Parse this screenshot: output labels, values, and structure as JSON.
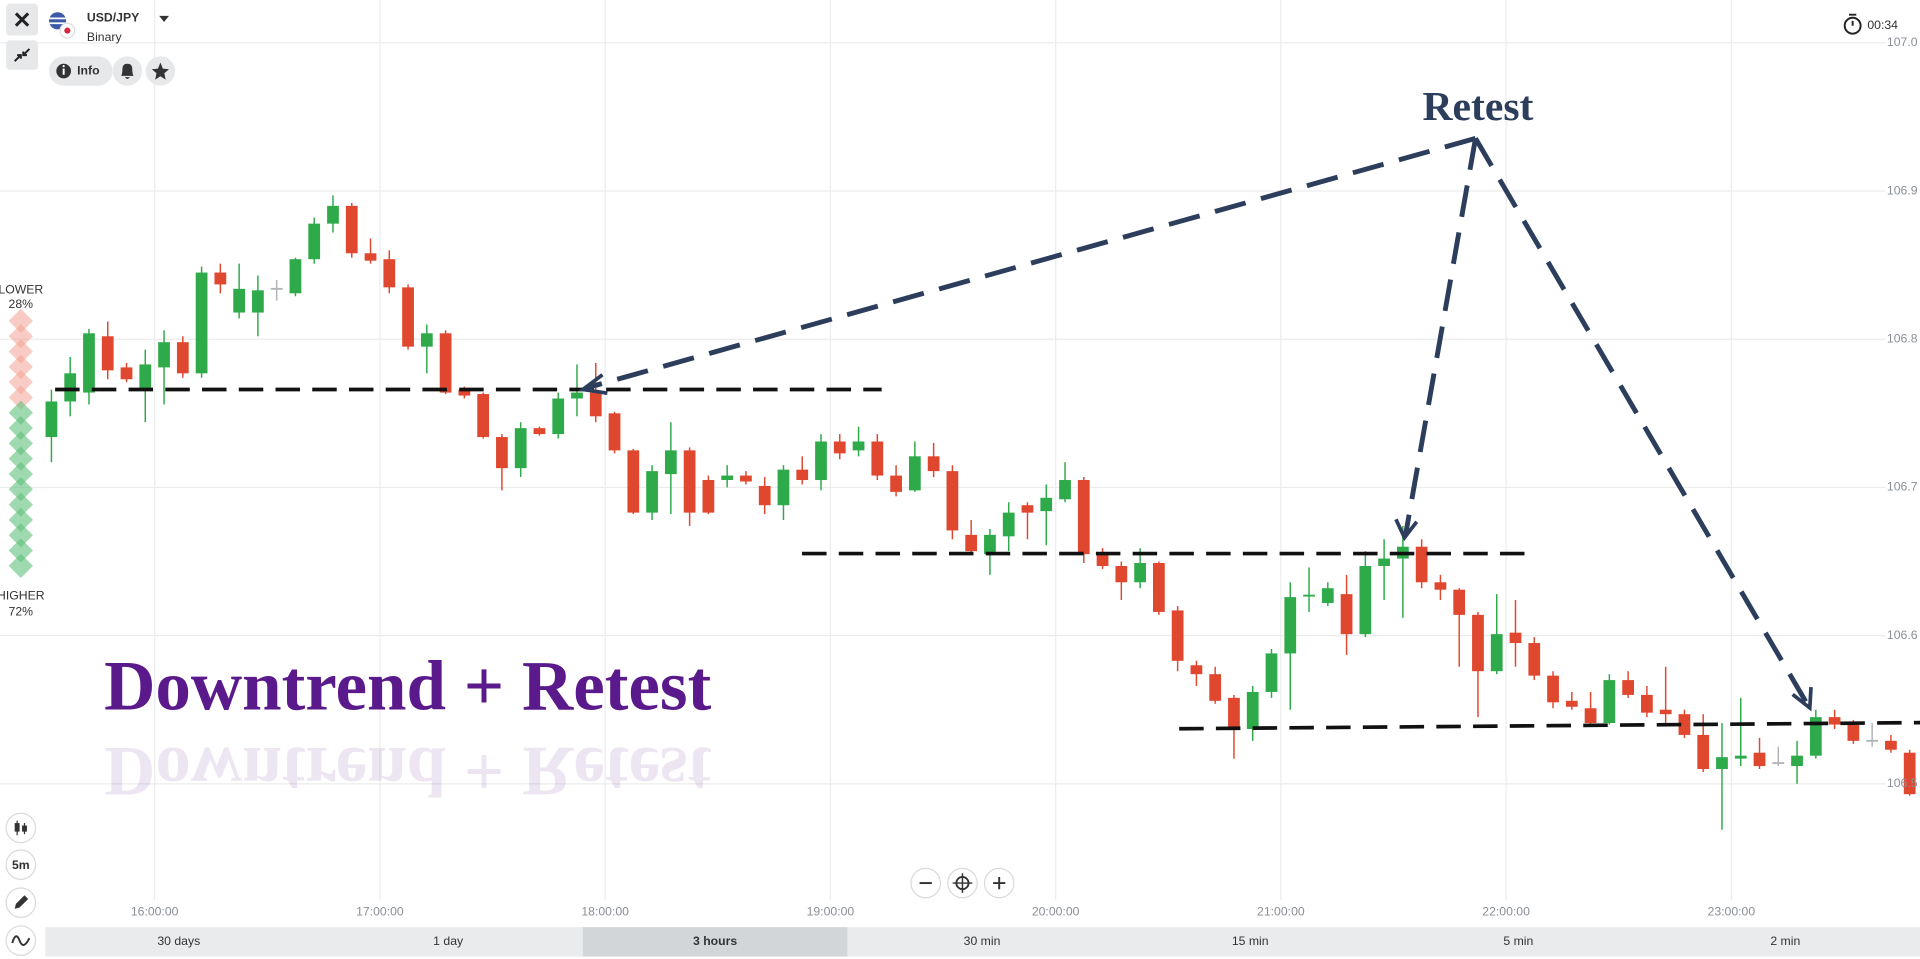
{
  "header": {
    "symbol": "USD/JPY",
    "mode": "Binary",
    "info": "Info",
    "timer": "00:34"
  },
  "sidebar": {
    "lower_label": "LOWER",
    "lower_pct": "28%",
    "higher_label": "HIGHER",
    "higher_pct": "72%",
    "timeframe": "5m"
  },
  "annotations": {
    "retest": "Retest",
    "title": "Downtrend + Retest"
  },
  "periods": [
    "30 days",
    "1 day",
    "3 hours",
    "30 min",
    "15 min",
    "5 min",
    "2 min"
  ],
  "chart_data": {
    "type": "candlestick",
    "up_color": "#2eaa4a",
    "down_color": "#e0472f",
    "flat_color": "#b0b4b8",
    "grid": true,
    "xlim": [
      -2.74,
      99.55
    ],
    "xticks": [
      {
        "value": 5.5,
        "label": "16:00:00"
      },
      {
        "value": 17.5,
        "label": "17:00:00"
      },
      {
        "value": 29.5,
        "label": "18:00:00"
      },
      {
        "value": 41.5,
        "label": "19:00:00"
      },
      {
        "value": 53.5,
        "label": "20:00:00"
      },
      {
        "value": 65.5,
        "label": "21:00:00"
      },
      {
        "value": 77.5,
        "label": "22:00:00"
      },
      {
        "value": 89.5,
        "label": "23:00:00"
      }
    ],
    "ylim": [
      106.4256,
      107.0289
    ],
    "yticks": [
      {
        "value": 107,
        "label": "107.0"
      },
      106.9,
      106.8,
      106.7,
      106.6,
      106.5
    ],
    "open": [
      106.734,
      106.758,
      106.764,
      106.802,
      106.781,
      106.766,
      106.781,
      106.798,
      106.777,
      106.845,
      106.818,
      106.818,
      106.834,
      106.831,
      106.854,
      106.878,
      106.89,
      106.858,
      106.854,
      106.835,
      106.795,
      106.804,
      106.766,
      106.763,
      106.734,
      106.713,
      106.74,
      106.736,
      106.76,
      106.764,
      106.75,
      106.725,
      106.683,
      106.709,
      106.725,
      106.705,
      106.705,
      106.708,
      106.701,
      106.688,
      106.712,
      106.705,
      106.731,
      106.725,
      106.731,
      106.708,
      106.698,
      106.721,
      106.711,
      106.668,
      106.655,
      106.667,
      106.688,
      106.684,
      106.692,
      106.705,
      106.655,
      106.647,
      106.636,
      106.649,
      106.617,
      106.58,
      106.574,
      106.558,
      106.537,
      106.562,
      106.588,
      106.626,
      106.622,
      106.628,
      106.601,
      106.647,
      106.652,
      106.66,
      106.636,
      106.631,
      106.614,
      106.576,
      106.602,
      106.595,
      106.573,
      106.556,
      106.551,
      106.541,
      106.57,
      106.56,
      106.55,
      106.547,
      106.533,
      106.51,
      106.517,
      106.521,
      106.514,
      106.512,
      106.519,
      106.545,
      106.54,
      106.529,
      106.529,
      106.521
    ],
    "high": [
      106.766,
      106.788,
      106.807,
      106.812,
      106.784,
      106.793,
      106.806,
      106.802,
      106.849,
      106.851,
      106.851,
      106.843,
      106.84,
      106.855,
      106.882,
      106.897,
      106.892,
      106.868,
      106.86,
      106.837,
      106.81,
      106.806,
      106.768,
      106.764,
      106.736,
      106.744,
      106.741,
      106.764,
      106.783,
      106.784,
      106.751,
      106.726,
      106.715,
      106.744,
      106.727,
      106.708,
      106.715,
      106.711,
      106.707,
      106.715,
      106.721,
      106.736,
      106.736,
      106.741,
      106.736,
      106.715,
      106.731,
      106.73,
      106.715,
      106.678,
      106.672,
      106.69,
      106.69,
      106.702,
      106.717,
      106.707,
      106.659,
      106.65,
      106.659,
      106.65,
      106.62,
      106.583,
      106.579,
      106.56,
      106.566,
      106.591,
      106.636,
      106.646,
      106.636,
      106.641,
      106.657,
      106.665,
      106.674,
      106.665,
      106.641,
      106.632,
      106.616,
      106.628,
      106.624,
      106.599,
      106.576,
      106.562,
      106.562,
      106.574,
      106.576,
      106.566,
      106.579,
      106.55,
      106.547,
      106.541,
      106.558,
      106.531,
      106.525,
      106.529,
      106.55,
      106.55,
      106.543,
      106.541,
      106.533,
      106.523
    ],
    "low": [
      106.717,
      106.748,
      106.756,
      106.773,
      106.771,
      106.744,
      106.756,
      106.774,
      106.774,
      106.831,
      106.814,
      106.802,
      106.826,
      106.829,
      106.851,
      106.872,
      106.855,
      106.851,
      106.831,
      106.793,
      106.777,
      106.763,
      106.76,
      106.733,
      106.698,
      106.707,
      106.735,
      106.733,
      106.748,
      106.744,
      106.723,
      106.682,
      106.678,
      106.682,
      106.674,
      106.682,
      106.7,
      106.702,
      106.682,
      106.678,
      106.702,
      106.698,
      106.719,
      106.721,
      106.705,
      106.694,
      106.697,
      106.707,
      106.665,
      106.655,
      106.641,
      106.657,
      106.665,
      106.661,
      106.69,
      106.649,
      106.645,
      106.624,
      106.632,
      106.614,
      106.576,
      106.566,
      106.554,
      106.517,
      106.529,
      106.558,
      106.55,
      106.616,
      106.62,
      106.587,
      106.599,
      106.624,
      106.612,
      106.632,
      106.624,
      106.579,
      106.545,
      106.574,
      106.579,
      106.57,
      106.551,
      106.55,
      106.539,
      106.54,
      106.558,
      106.545,
      106.541,
      106.531,
      106.508,
      106.469,
      106.512,
      106.51,
      106.512,
      106.5,
      106.517,
      106.537,
      106.527,
      106.525,
      106.521,
      106.492
    ],
    "close": [
      106.758,
      106.777,
      106.804,
      106.779,
      106.773,
      106.783,
      106.798,
      106.777,
      106.845,
      106.837,
      106.834,
      106.833,
      106.834,
      106.854,
      106.878,
      106.89,
      106.858,
      106.853,
      106.835,
      106.795,
      106.804,
      106.764,
      106.762,
      106.734,
      106.713,
      106.74,
      106.736,
      106.76,
      106.764,
      106.748,
      106.725,
      106.683,
      106.711,
      106.725,
      106.683,
      106.683,
      106.708,
      106.704,
      106.688,
      106.712,
      106.705,
      106.731,
      106.723,
      106.731,
      106.708,
      106.697,
      106.721,
      106.711,
      106.671,
      106.657,
      106.668,
      106.683,
      106.683,
      106.693,
      106.705,
      106.655,
      106.647,
      106.636,
      106.649,
      106.616,
      106.583,
      106.574,
      106.556,
      106.537,
      106.562,
      106.588,
      106.626,
      106.627,
      106.632,
      106.601,
      106.647,
      106.652,
      106.66,
      106.636,
      106.631,
      106.614,
      106.576,
      106.601,
      106.595,
      106.573,
      106.555,
      106.552,
      106.541,
      106.57,
      106.56,
      106.548,
      106.547,
      106.533,
      106.51,
      106.518,
      106.519,
      106.512,
      106.514,
      106.519,
      106.545,
      106.54,
      106.529,
      106.529,
      106.523,
      106.493
    ]
  }
}
